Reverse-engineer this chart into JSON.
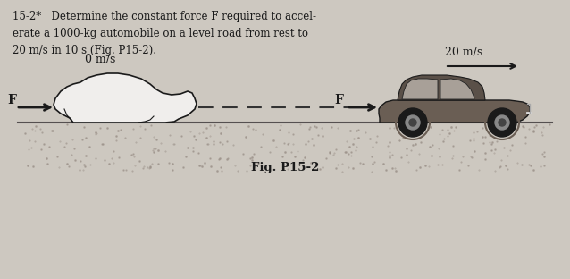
{
  "bg_color": "#cdc8c0",
  "problem_text_line1": "15-2*   Determine the constant force F required to accel-",
  "problem_text_line2": "erate a 1000-kg automobile on a level road from rest to",
  "problem_text_line3": "20 m/s in 10 s (Fig. P15-2).",
  "label_0ms": "0 m/s",
  "label_20ms": "20 m/s",
  "label_F": "F",
  "fig_label": "Fig. P15-2",
  "text_color": "#1a1a1a",
  "road_color": "#555050",
  "car_outline_color": "#1a1a1a",
  "car_fill_color": "#f0eeec",
  "car2_fill_color": "#6a5e54",
  "arrow_color": "#1a1a1a",
  "dashed_color": "#333333"
}
